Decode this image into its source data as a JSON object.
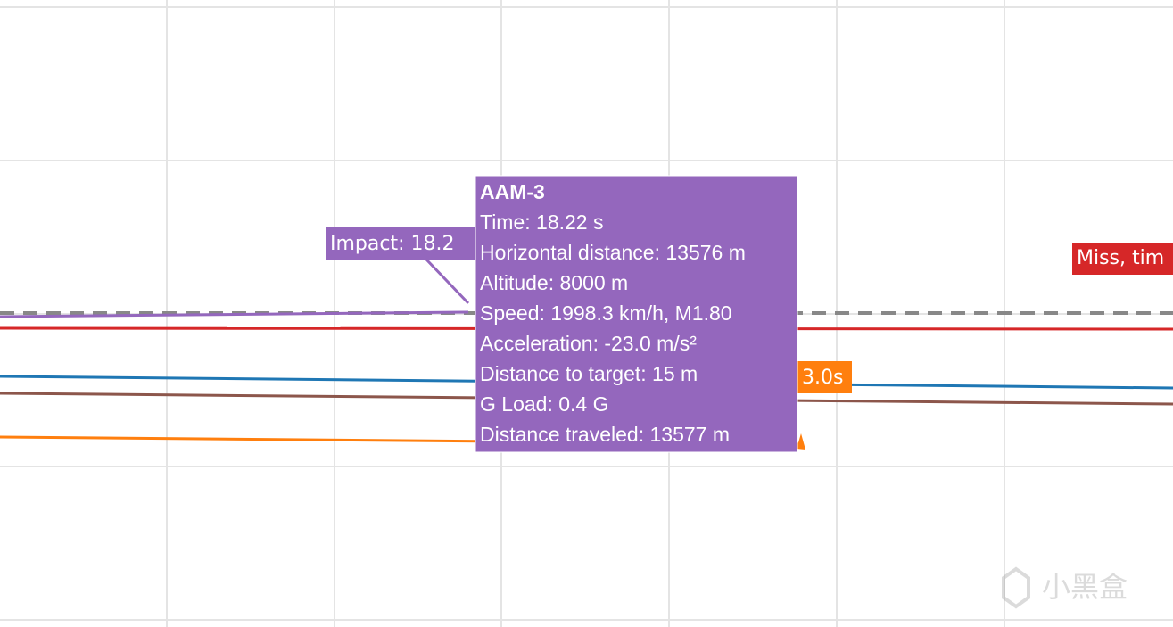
{
  "annotations": {
    "impact": "Impact: 18.2",
    "orange_time": "3.0s",
    "miss": "Miss, tim"
  },
  "tooltip": {
    "title": "AAM-3",
    "lines": [
      "Time: 18.22 s",
      "Horizontal distance: 13576 m",
      "Altitude: 8000 m",
      "Speed: 1998.3 km/h, M1.80",
      "Acceleration: -23.0 m/s²",
      "Distance to target: 15 m",
      "G Load: 0.4 G",
      "Distance traveled: 13577 m"
    ]
  },
  "watermark": "小黑盒"
}
